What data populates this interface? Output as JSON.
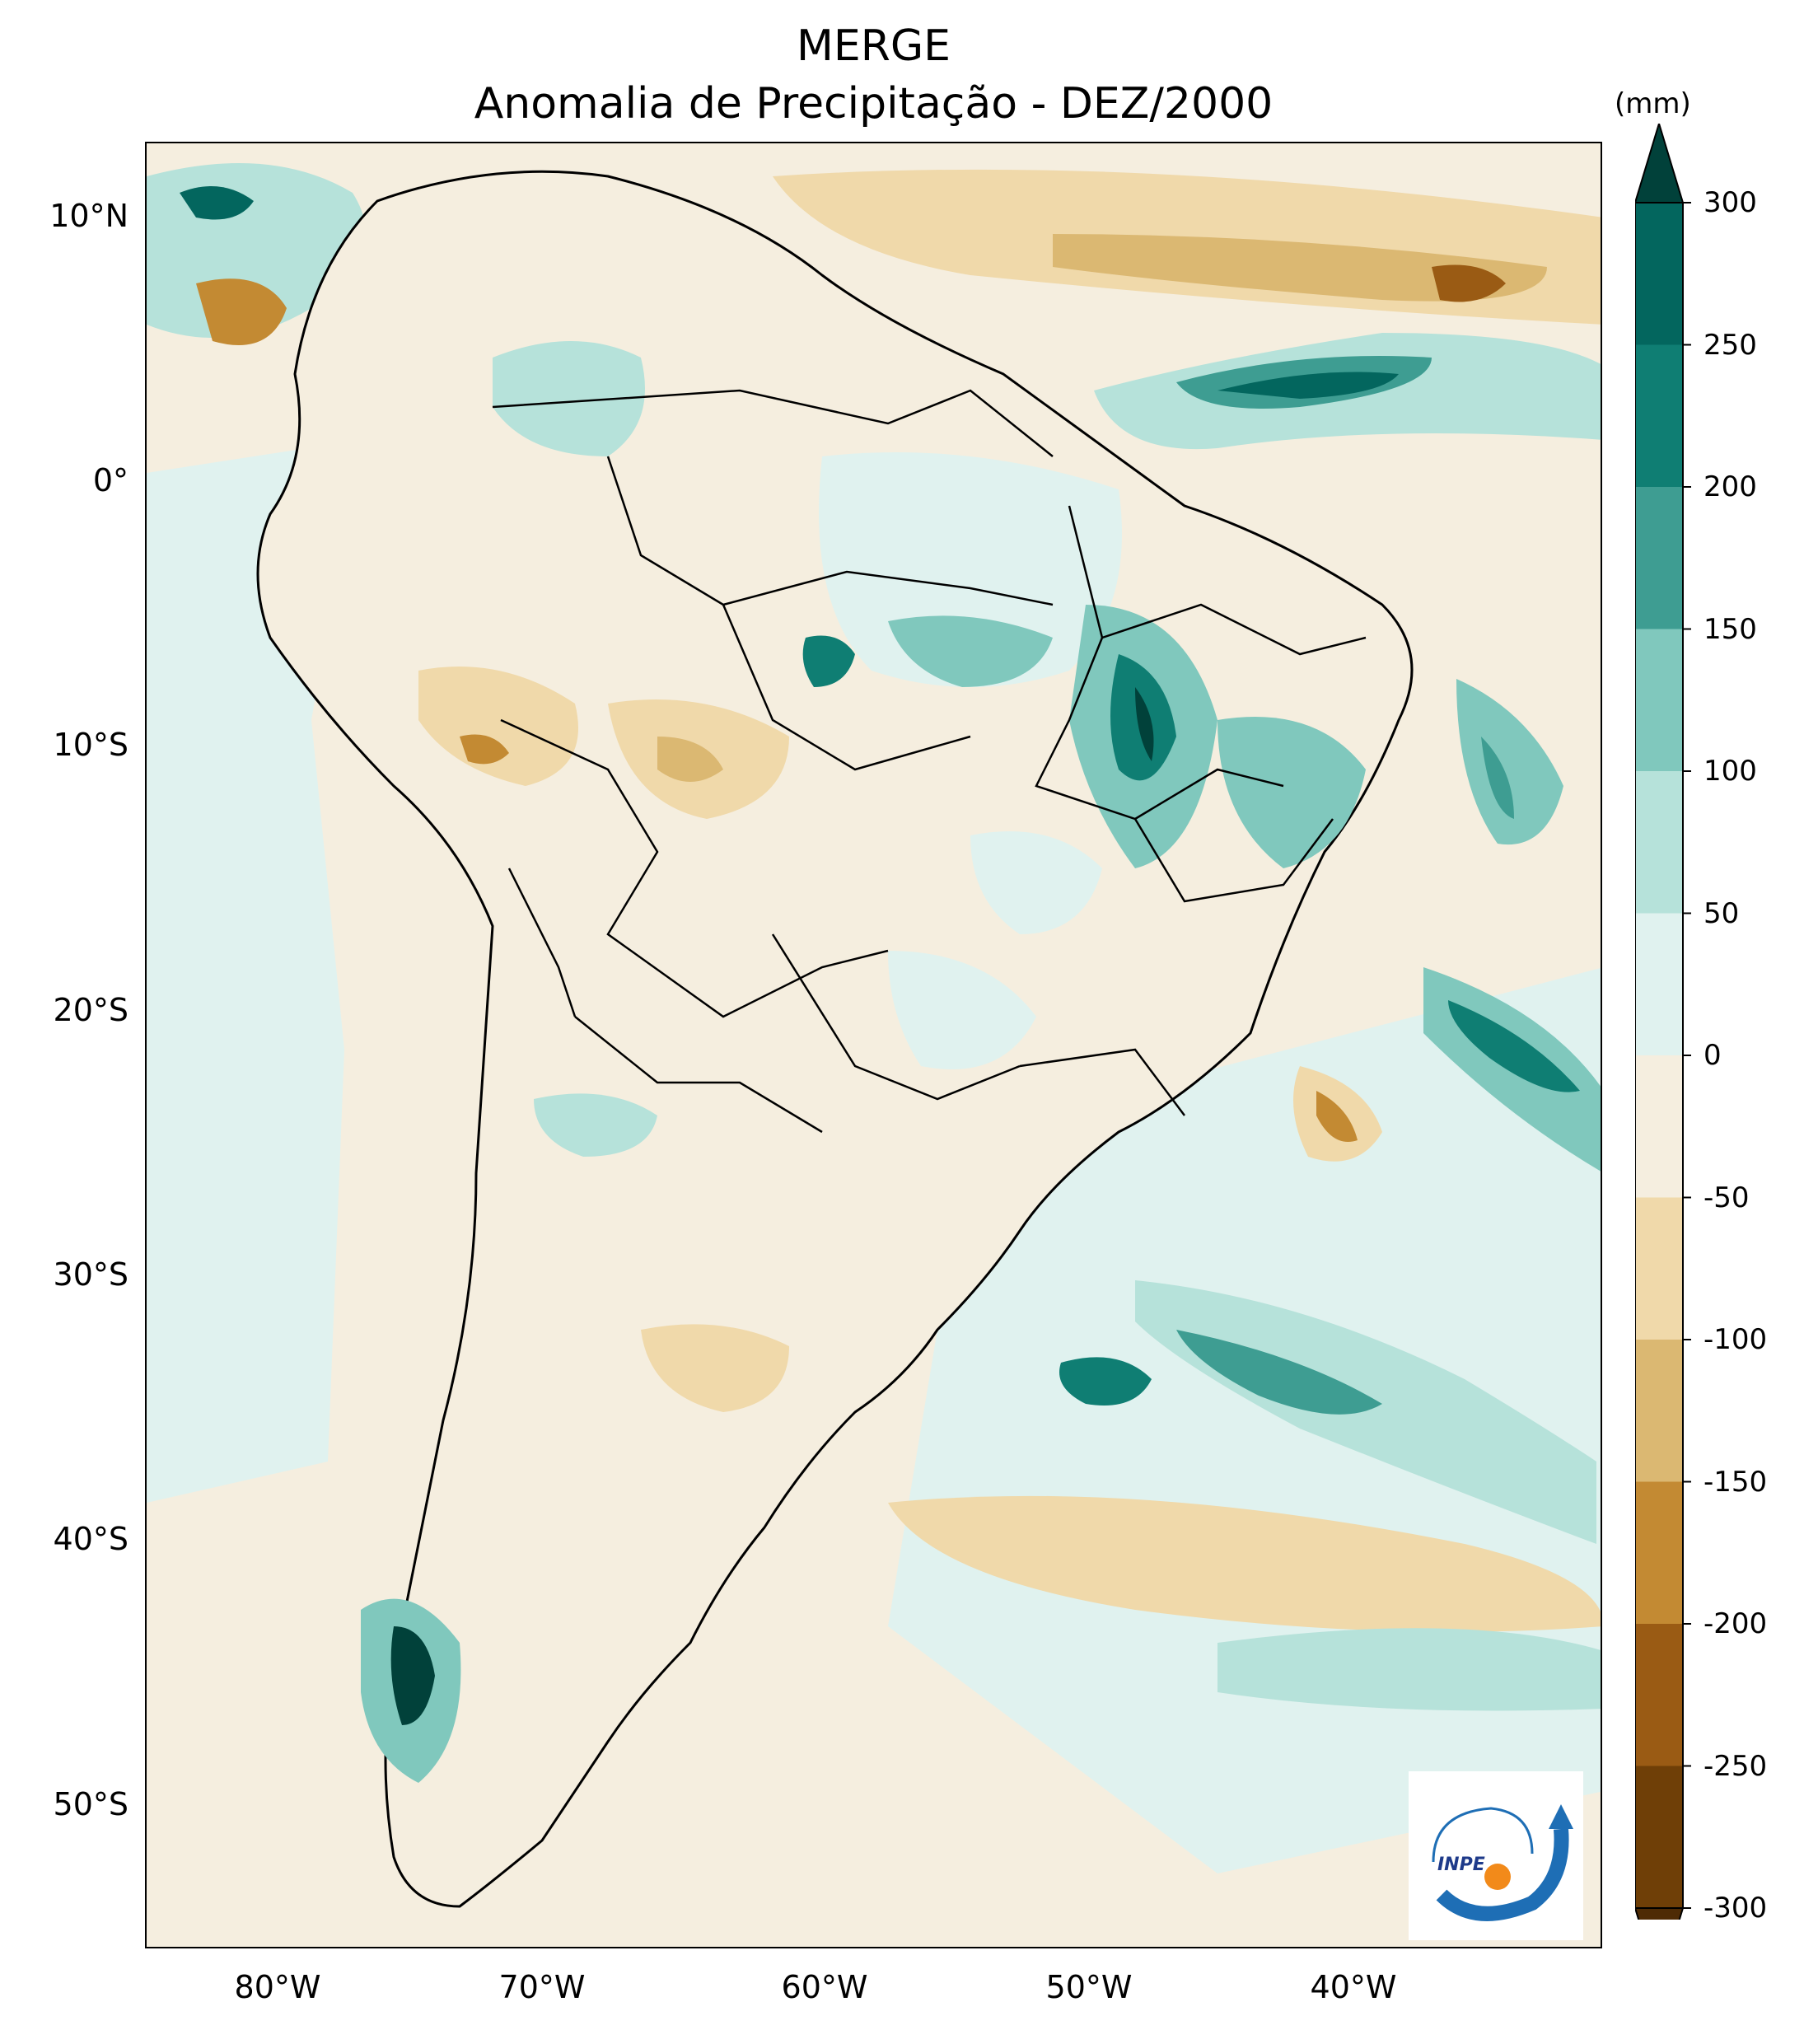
{
  "title": {
    "line1": "MERGE",
    "line2": "Anomalia de Precipitação - DEZ/2000"
  },
  "axes": {
    "lat_labels": [
      "10°N",
      "0°",
      "10°S",
      "20°S",
      "30°S",
      "40°S",
      "50°S"
    ],
    "lon_labels": [
      "80°W",
      "70°W",
      "60°W",
      "50°W",
      "40°W"
    ]
  },
  "colorbar": {
    "unit": "(mm)",
    "ticks": [
      "300",
      "250",
      "200",
      "150",
      "100",
      "50",
      "0",
      "-50",
      "-100",
      "-150",
      "-200",
      "-250",
      "-300"
    ],
    "colors": [
      "#01413a",
      "#03665e",
      "#0f7e73",
      "#3e9d92",
      "#80c8bd",
      "#b6e2da",
      "#e0f2ef",
      "#f5eedf",
      "#f0d9aa",
      "#dbb872",
      "#c38a33",
      "#9a5b14",
      "#6f3f07",
      "#4e2b05"
    ]
  },
  "logo": {
    "text": "INPE"
  }
}
